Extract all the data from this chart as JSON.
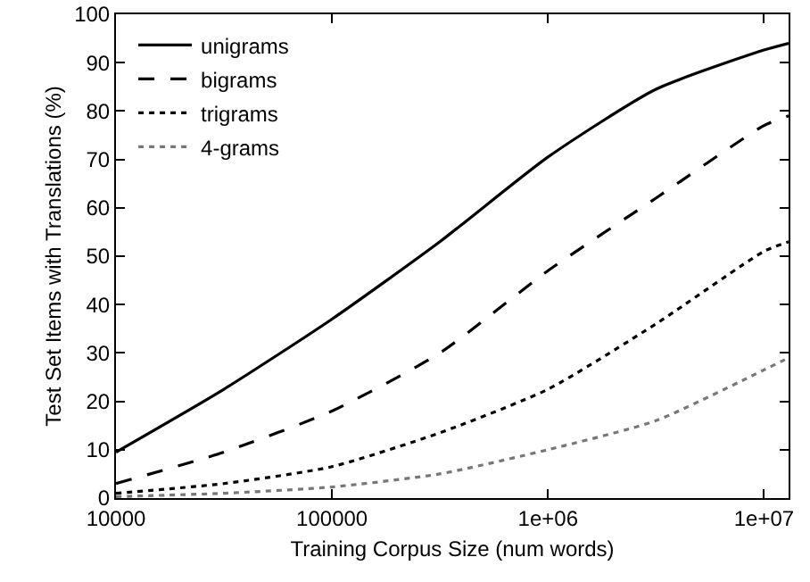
{
  "chart_data": {
    "type": "line",
    "xlabel": "Training Corpus Size (num words)",
    "ylabel": "Test Set Items with Translations (%)",
    "x": [
      10000,
      31600,
      100000,
      316000,
      1000000,
      3160000,
      10000000,
      13000000
    ],
    "series": [
      {
        "name": "unigrams",
        "color": "#000000",
        "line_style": "solid",
        "values": [
          9.5,
          22.5,
          37,
          53,
          70.5,
          84.5,
          92.6,
          94
        ]
      },
      {
        "name": "bigrams",
        "color": "#000000",
        "line_style": "dashed",
        "values": [
          3,
          9.5,
          18,
          30,
          47,
          62,
          77,
          79
        ]
      },
      {
        "name": "trigrams",
        "color": "#000000",
        "line_style": "dotted",
        "values": [
          1,
          3,
          6.5,
          13.5,
          22.5,
          36,
          51,
          53
        ]
      },
      {
        "name": "4-grams",
        "color": "#777777",
        "line_style": "dotted",
        "values": [
          0.3,
          1,
          2.3,
          5,
          10,
          16,
          26.5,
          29
        ]
      }
    ],
    "log": "x",
    "xlim": [
      10000,
      13000000
    ],
    "xticks": [
      10000,
      100000,
      {
        "value": 1000000,
        "label": "1e+06"
      },
      {
        "value": 10000000,
        "label": "1e+07"
      }
    ],
    "ylim": [
      0,
      100
    ],
    "yticks": [
      0,
      10,
      20,
      30,
      40,
      50,
      60,
      70,
      80,
      90,
      100
    ],
    "grid": false,
    "legend": "top left",
    "marker": "none"
  }
}
